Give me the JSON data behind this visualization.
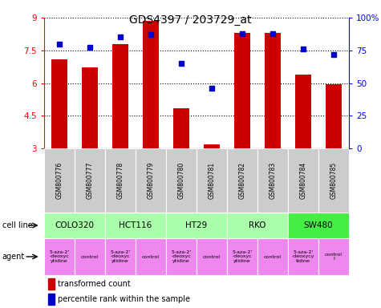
{
  "title": "GDS4397 / 203729_at",
  "samples": [
    "GSM800776",
    "GSM800777",
    "GSM800778",
    "GSM800779",
    "GSM800780",
    "GSM800781",
    "GSM800782",
    "GSM800783",
    "GSM800784",
    "GSM800785"
  ],
  "red_values": [
    7.1,
    6.7,
    7.8,
    8.85,
    4.85,
    3.2,
    8.3,
    8.3,
    6.4,
    5.95
  ],
  "blue_values": [
    80,
    77,
    85,
    87,
    65,
    46,
    88,
    88,
    76,
    72
  ],
  "ylim_left": [
    3,
    9
  ],
  "ylim_right": [
    0,
    100
  ],
  "yticks_left": [
    3,
    4.5,
    6,
    7.5,
    9
  ],
  "ytick_labels_left": [
    "3",
    "4.5",
    "6",
    "7.5",
    "9"
  ],
  "yticks_right": [
    0,
    25,
    50,
    75,
    100
  ],
  "ytick_labels_right": [
    "0",
    "25",
    "50",
    "75",
    "100%"
  ],
  "bar_color": "#cc0000",
  "dot_color": "#0000cc",
  "sample_bg_color": "#cccccc",
  "bar_bottom": 3,
  "cell_groups": [
    {
      "name": "COLO320",
      "start": 0,
      "end": 2,
      "color": "#aaffaa"
    },
    {
      "name": "HCT116",
      "start": 2,
      "end": 4,
      "color": "#aaffaa"
    },
    {
      "name": "HT29",
      "start": 4,
      "end": 6,
      "color": "#aaffaa"
    },
    {
      "name": "RKO",
      "start": 6,
      "end": 8,
      "color": "#aaffaa"
    },
    {
      "name": "SW480",
      "start": 8,
      "end": 10,
      "color": "#44ee44"
    }
  ],
  "agent_labels": [
    "5-aza-2'\n-deoxyc\nytidine",
    "control",
    "5-aza-2'\n-deoxyc\nytidine",
    "control",
    "5-aza-2'\n-deoxyc\nytidine",
    "control",
    "5-aza-2'\n-deoxyc\nytidine",
    "control",
    "5-aza-2'\n-deoxycy\ntidine",
    "control\nl"
  ],
  "agent_color": "#ee88ee",
  "legend_items": [
    {
      "color": "#cc0000",
      "label": "transformed count"
    },
    {
      "color": "#0000cc",
      "label": "percentile rank within the sample"
    }
  ]
}
